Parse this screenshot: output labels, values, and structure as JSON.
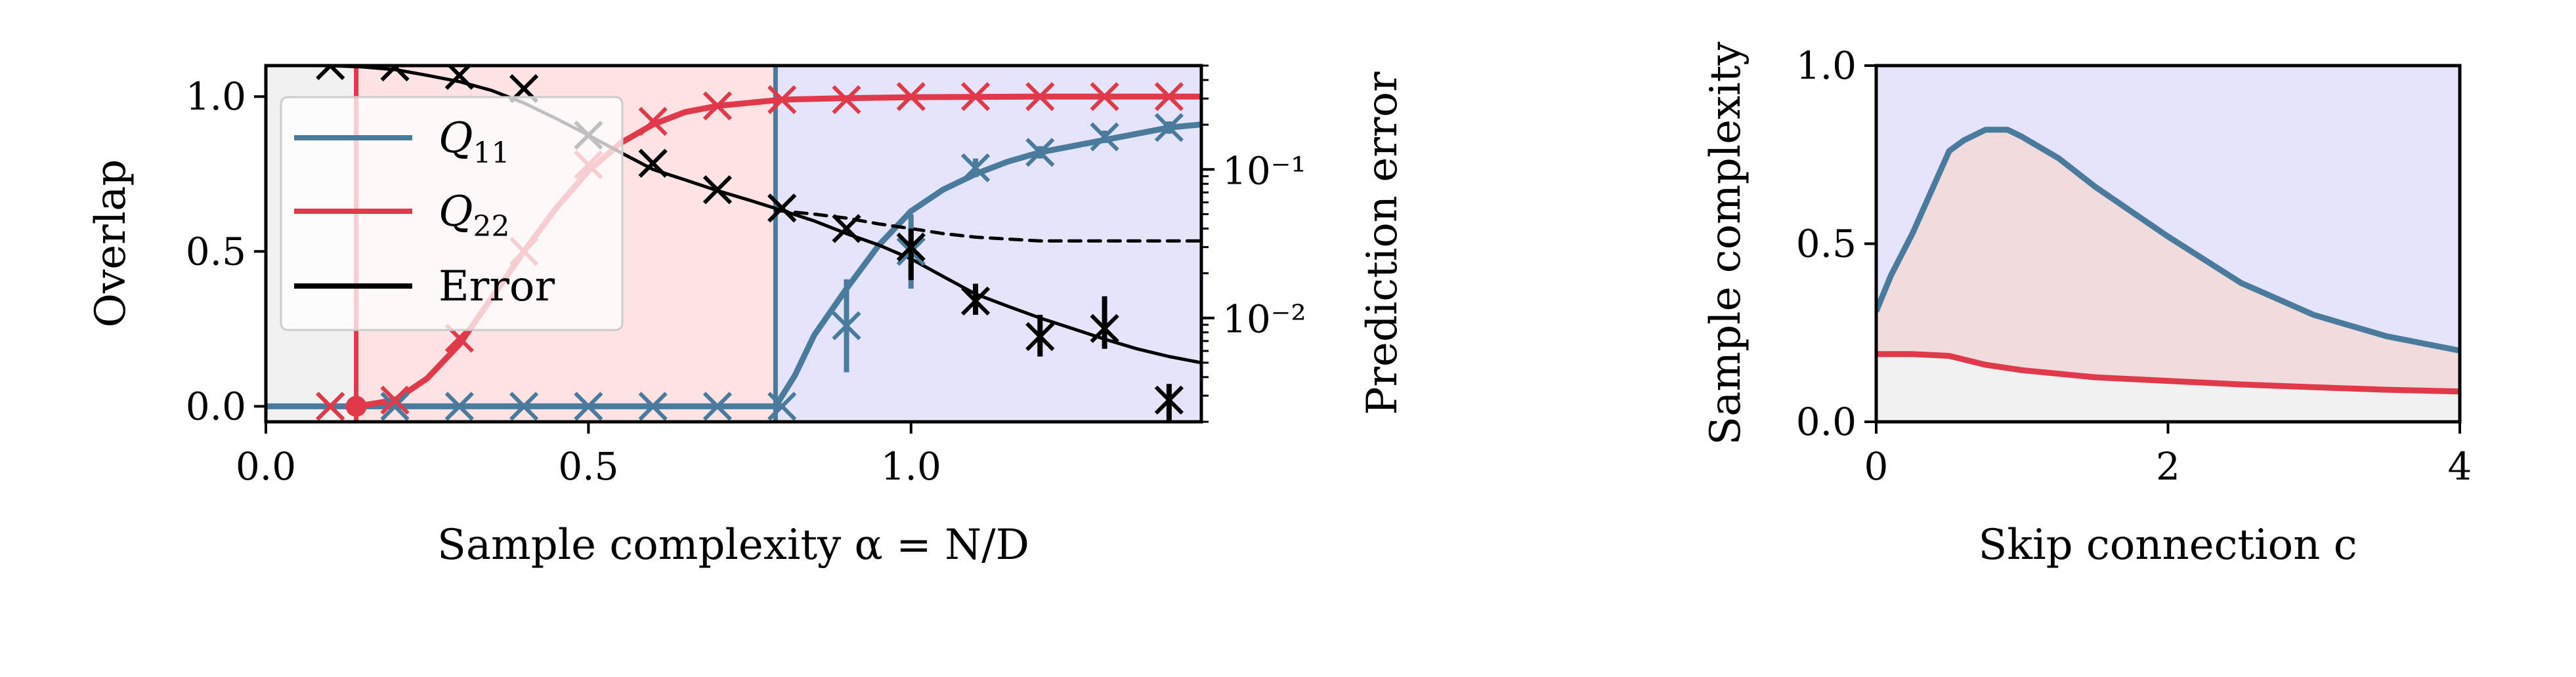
{
  "colors": {
    "blue": "#4a7a9c",
    "red": "#e03a4a",
    "black": "#000000",
    "region_gray": "#f1f1f1",
    "region_pink": "#fde3e4",
    "region_lavender": "#e4e4fb",
    "region_pink_right": "#f1dcdd"
  },
  "chart_data": [
    {
      "type": "line",
      "xlabel": "Sample complexity α = N/D",
      "ylabel": "Overlap",
      "ylabel_right": "Prediction error",
      "xlim": [
        0,
        1.45
      ],
      "ylim": [
        -0.05,
        1.1
      ],
      "y2_scale": "log",
      "y2lim": [
        0.002,
        0.5
      ],
      "xticks": [
        "0.0",
        "0.5",
        "1.0"
      ],
      "yticks": [
        "0.0",
        "0.5",
        "1.0"
      ],
      "y2ticks": [
        "10⁻¹",
        "10⁻²"
      ],
      "legend_position": "upper-left",
      "legend": [
        {
          "label": "Q",
          "sub": "11",
          "color": "blue"
        },
        {
          "label": "Q",
          "sub": "22",
          "color": "red"
        },
        {
          "label": "Error",
          "sub": "",
          "color": "black"
        }
      ],
      "regions": [
        {
          "x": [
            0,
            0.14
          ],
          "color": "region_gray"
        },
        {
          "x": [
            0.14,
            0.79
          ],
          "color": "region_pink"
        },
        {
          "x": [
            0.79,
            1.45
          ],
          "color": "region_lavender"
        }
      ],
      "vlines": [
        {
          "x": 0.14,
          "color": "red"
        },
        {
          "x": 0.79,
          "color": "blue"
        }
      ],
      "series": [
        {
          "name": "Q11",
          "axis": "left",
          "color": "blue",
          "x": [
            0,
            0.79,
            0.82,
            0.85,
            0.9,
            0.95,
            1.0,
            1.05,
            1.1,
            1.15,
            1.2,
            1.25,
            1.3,
            1.35,
            1.4,
            1.45
          ],
          "y": [
            0,
            0,
            0.1,
            0.23,
            0.38,
            0.52,
            0.63,
            0.7,
            0.75,
            0.79,
            0.82,
            0.84,
            0.86,
            0.88,
            0.9,
            0.91
          ]
        },
        {
          "name": "Q22",
          "axis": "left",
          "color": "red",
          "x": [
            0.14,
            0.2,
            0.25,
            0.3,
            0.35,
            0.4,
            0.45,
            0.5,
            0.55,
            0.6,
            0.65,
            0.7,
            0.8,
            0.9,
            1.0,
            1.2,
            1.45
          ],
          "y": [
            0,
            0.02,
            0.09,
            0.2,
            0.35,
            0.5,
            0.64,
            0.76,
            0.85,
            0.91,
            0.95,
            0.97,
            0.99,
            0.995,
            0.998,
            1.0,
            1.0
          ]
        },
        {
          "name": "Error",
          "axis": "right",
          "color": "black",
          "x": [
            0,
            0.1,
            0.15,
            0.2,
            0.25,
            0.3,
            0.35,
            0.4,
            0.45,
            0.5,
            0.55,
            0.6,
            0.65,
            0.7,
            0.75,
            0.8,
            0.85,
            0.9,
            0.95,
            1.0,
            1.05,
            1.1,
            1.15,
            1.2,
            1.25,
            1.3,
            1.35,
            1.4,
            1.45
          ],
          "y": [
            0.5,
            0.5,
            0.49,
            0.47,
            0.43,
            0.39,
            0.34,
            0.28,
            0.22,
            0.17,
            0.13,
            0.1,
            0.085,
            0.072,
            0.062,
            0.053,
            0.045,
            0.037,
            0.031,
            0.025,
            0.019,
            0.0145,
            0.012,
            0.01,
            0.0085,
            0.0072,
            0.0062,
            0.0055,
            0.005
          ]
        },
        {
          "name": "",
          "axis": "right",
          "color": "black",
          "dashed": true,
          "x": [
            0.79,
            0.85,
            0.9,
            0.95,
            1.0,
            1.05,
            1.1,
            1.15,
            1.2,
            1.25,
            1.3,
            1.35,
            1.4,
            1.45
          ],
          "y": [
            0.053,
            0.05,
            0.047,
            0.043,
            0.04,
            0.037,
            0.035,
            0.034,
            0.033,
            0.033,
            0.033,
            0.033,
            0.033,
            0.033
          ]
        }
      ],
      "markers": [
        {
          "series": "Q11",
          "axis": "left",
          "color": "blue",
          "x": [
            0.1,
            0.2,
            0.3,
            0.4,
            0.5,
            0.6,
            0.7,
            0.8,
            0.9,
            1.0,
            1.1,
            1.2,
            1.3,
            1.4
          ],
          "y": [
            0,
            0,
            0,
            0,
            0,
            0,
            0,
            0,
            0.26,
            0.5,
            0.77,
            0.82,
            0.87,
            0.9
          ],
          "err": [
            0,
            0,
            0,
            0,
            0,
            0,
            0,
            0,
            0.15,
            0.12,
            0.03,
            0.02,
            0.02,
            0.02
          ]
        },
        {
          "series": "Q22",
          "axis": "left",
          "color": "red",
          "x": [
            0.1,
            0.2,
            0.3,
            0.4,
            0.5,
            0.6,
            0.7,
            0.8,
            0.9,
            1.0,
            1.1,
            1.2,
            1.3,
            1.4
          ],
          "y": [
            0,
            0.02,
            0.22,
            0.5,
            0.78,
            0.92,
            0.97,
            0.99,
            0.99,
            1.0,
            1.0,
            1.0,
            1.0,
            1.0
          ],
          "err": [
            0,
            0,
            0,
            0,
            0,
            0,
            0,
            0,
            0,
            0,
            0,
            0,
            0,
            0
          ]
        },
        {
          "series": "Error",
          "axis": "right",
          "color": "black",
          "x": [
            0.1,
            0.2,
            0.3,
            0.4,
            0.5,
            0.6,
            0.7,
            0.8,
            0.9,
            1.0,
            1.1,
            1.2,
            1.3,
            1.4
          ],
          "y": [
            0.5,
            0.49,
            0.43,
            0.35,
            0.17,
            0.11,
            0.073,
            0.055,
            0.04,
            0.03,
            0.013,
            0.0075,
            0.0085,
            0.0028
          ],
          "err_lo": [
            0,
            0,
            0,
            0,
            0,
            0,
            0,
            0,
            0,
            0.018,
            0.0105,
            0.0055,
            0.0062,
            0.0008
          ],
          "err_hi": [
            0,
            0,
            0,
            0,
            0,
            0,
            0,
            0,
            0,
            0.04,
            0.017,
            0.0105,
            0.014,
            0.0036
          ]
        }
      ],
      "points": [
        {
          "x": 0.14,
          "y": 0,
          "color": "red"
        }
      ]
    },
    {
      "type": "area",
      "xlabel": "Skip connection c",
      "ylabel": "Sample complexity",
      "xlim": [
        0,
        4
      ],
      "ylim": [
        0,
        1
      ],
      "xticks": [
        "0",
        "2",
        "4"
      ],
      "yticks": [
        "0.0",
        "0.5",
        "1.0"
      ],
      "regions": [
        {
          "between": [
            "axis_bottom",
            "red"
          ],
          "color": "region_gray"
        },
        {
          "between": [
            "red",
            "blue"
          ],
          "color": "region_pink_right"
        },
        {
          "between": [
            "blue",
            "axis_top"
          ],
          "color": "region_lavender"
        }
      ],
      "series": [
        {
          "name": "",
          "color": "blue",
          "x": [
            0,
            0.1,
            0.25,
            0.5,
            0.6,
            0.75,
            0.9,
            1.0,
            1.25,
            1.5,
            2.0,
            2.5,
            3.0,
            3.5,
            4.0
          ],
          "y": [
            0.31,
            0.41,
            0.53,
            0.76,
            0.79,
            0.82,
            0.82,
            0.8,
            0.74,
            0.66,
            0.52,
            0.39,
            0.3,
            0.24,
            0.2
          ]
        },
        {
          "name": "",
          "color": "red",
          "x": [
            0,
            0.25,
            0.5,
            0.75,
            1.0,
            1.5,
            2.0,
            2.5,
            3.0,
            3.5,
            4.0
          ],
          "y": [
            0.19,
            0.19,
            0.185,
            0.16,
            0.145,
            0.125,
            0.115,
            0.105,
            0.097,
            0.09,
            0.085
          ]
        }
      ]
    }
  ]
}
